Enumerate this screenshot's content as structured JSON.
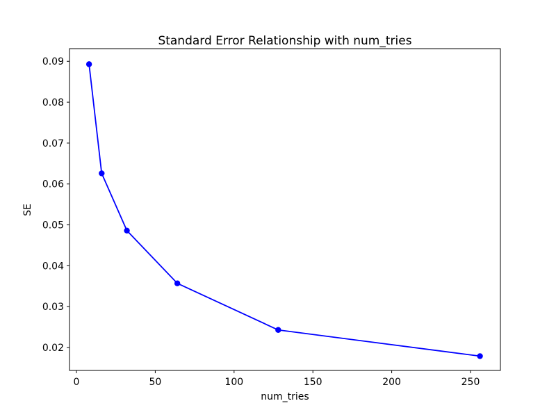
{
  "chart_data": {
    "type": "line",
    "title": "Standard Error Relationship with num_tries",
    "xlabel": "num_tries",
    "ylabel": "SE",
    "x": [
      8,
      16,
      32,
      64,
      128,
      256
    ],
    "y": [
      0.0893,
      0.0626,
      0.0486,
      0.0357,
      0.0243,
      0.0179
    ],
    "line_color": "#0000ff",
    "marker": "circle",
    "marker_color": "#0000ff",
    "xlim": [
      -4.41,
      268.96
    ],
    "ylim": [
      0.0144,
      0.0931
    ],
    "xticks": {
      "values": [
        0,
        50,
        100,
        150,
        200,
        250
      ],
      "labels": [
        "0",
        "50",
        "100",
        "150",
        "200",
        "250"
      ]
    },
    "yticks": {
      "values": [
        0.02,
        0.03,
        0.04,
        0.05,
        0.06,
        0.07,
        0.08,
        0.09
      ],
      "labels": [
        "0.02",
        "0.03",
        "0.04",
        "0.05",
        "0.06",
        "0.07",
        "0.08",
        "0.09"
      ]
    },
    "grid": false,
    "legend": "none",
    "axis_color": "#000000",
    "background": "#ffffff"
  }
}
